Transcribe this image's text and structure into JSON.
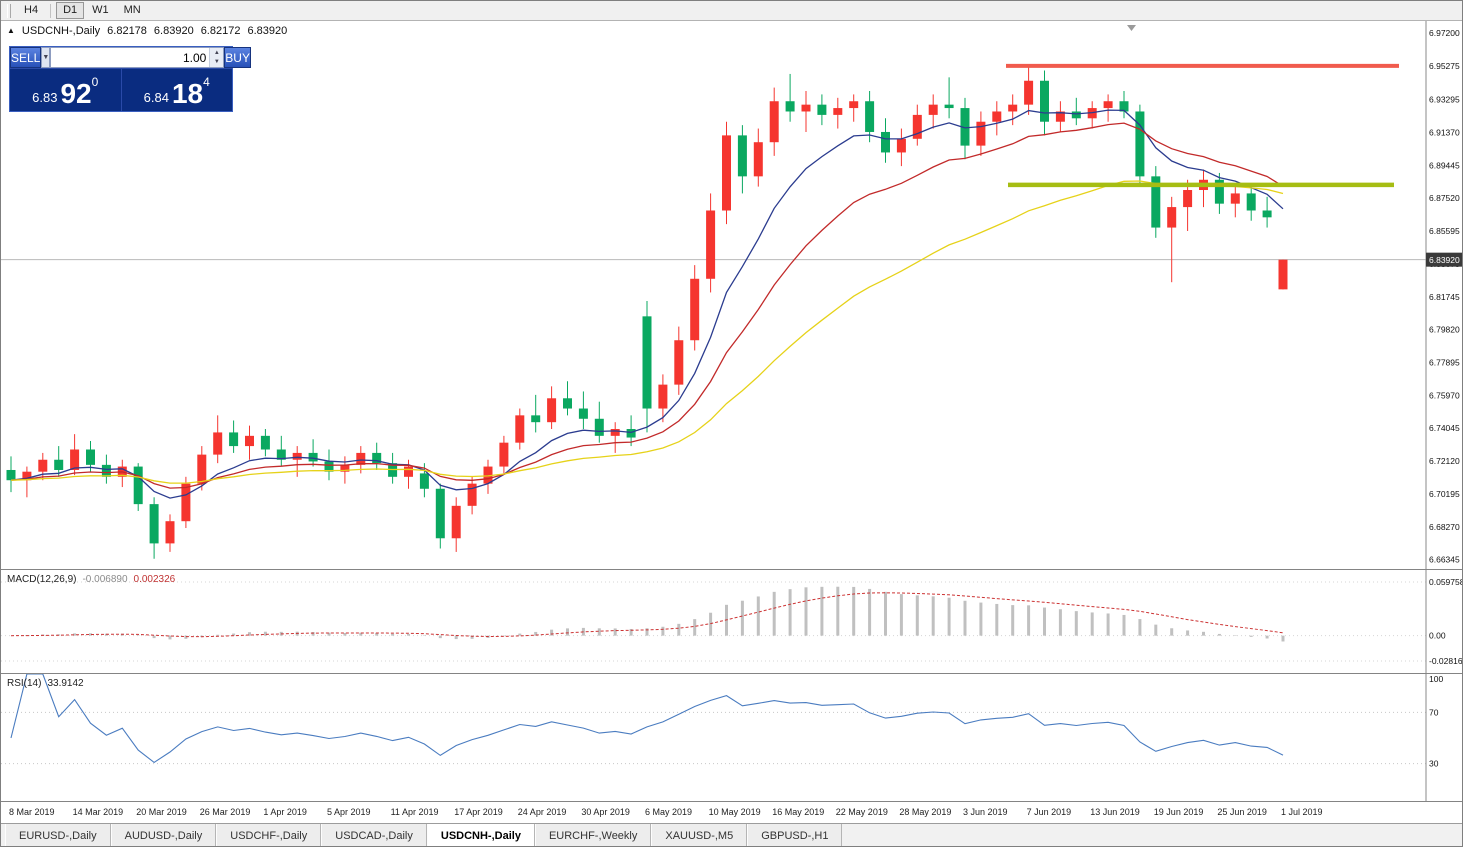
{
  "toolbar": {
    "timeframes": [
      "H4",
      "D1",
      "W1",
      "MN"
    ]
  },
  "icons": {
    "tick_up": "▲",
    "dropdown": "▼",
    "spin_up": "▲",
    "spin_down": "▼"
  },
  "chart_header": {
    "symbol": "USDCNH-,Daily",
    "open": "6.82178",
    "high": "6.83920",
    "low": "6.82172",
    "close": "6.83920"
  },
  "trade_panel": {
    "sell_label": "SELL",
    "buy_label": "BUY",
    "volume": "1.00",
    "sell_price": {
      "prefix": "6.83",
      "big": "92",
      "sup": "0"
    },
    "buy_price": {
      "prefix": "6.84",
      "big": "18",
      "sup": "4"
    }
  },
  "price_axis": [
    "6.97200",
    "6.95275",
    "6.93295",
    "6.91370",
    "6.89445",
    "6.87520",
    "6.85595",
    "6.83670",
    "6.81745",
    "6.79820",
    "6.77895",
    "6.75970",
    "6.74045",
    "6.72120",
    "6.70195",
    "6.68270",
    "6.66345"
  ],
  "current_price_badge": "6.83920",
  "macd_panel": {
    "name": "MACD(12,26,9)",
    "value": "-0.006890",
    "signal_value": "0.002326",
    "axis_labels": [
      "0.059758",
      "0.00",
      "-0.02816"
    ]
  },
  "rsi_panel": {
    "name": "RSI(14)",
    "value": "33.9142",
    "axis_labels": [
      "100",
      "70",
      "30"
    ]
  },
  "date_axis": [
    "8 Mar 2019",
    "14 Mar 2019",
    "20 Mar 2019",
    "26 Mar 2019",
    "1 Apr 2019",
    "5 Apr 2019",
    "11 Apr 2019",
    "17 Apr 2019",
    "24 Apr 2019",
    "30 Apr 2019",
    "6 May 2019",
    "10 May 2019",
    "16 May 2019",
    "22 May 2019",
    "28 May 2019",
    "3 Jun 2019",
    "7 Jun 2019",
    "13 Jun 2019",
    "19 Jun 2019",
    "25 Jun 2019",
    "1 Jul 2019"
  ],
  "tabs": [
    {
      "label": "EURUSD-,Daily",
      "active": false
    },
    {
      "label": "AUDUSD-,Daily",
      "active": false
    },
    {
      "label": "USDCHF-,Daily",
      "active": false
    },
    {
      "label": "USDCAD-,Daily",
      "active": false
    },
    {
      "label": "USDCNH-,Daily",
      "active": true
    },
    {
      "label": "EURCHF-,Weekly",
      "active": false
    },
    {
      "label": "XAUUSD-,M5",
      "active": false
    },
    {
      "label": "GBPUSD-,H1",
      "active": false
    }
  ],
  "colors": {
    "candle_up": "#f5352f",
    "candle_down": "#0aa860",
    "ma_fast": "#2b3c8f",
    "ma_mid": "#c22a2a",
    "ma_slow": "#e6d219",
    "resistance": "#f15b4d",
    "support": "#a6bd13",
    "histogram": "#c0c0c0",
    "signal_red": "#cc3333",
    "rsi_line": "#4a7cc0",
    "badge_bg": "#3a3a3a",
    "panel_blue": "#0a2c80",
    "button_blue": "#2851b8"
  },
  "chart_data": {
    "type": "candlestick",
    "symbol": "USDCNH",
    "timeframe": "Daily",
    "y_range": [
      6.658,
      6.979
    ],
    "candles": [
      [
        6.716,
        6.724,
        6.703,
        6.71
      ],
      [
        6.71,
        6.718,
        6.7,
        6.715
      ],
      [
        6.715,
        6.726,
        6.71,
        6.722
      ],
      [
        6.722,
        6.73,
        6.712,
        6.716
      ],
      [
        6.716,
        6.737,
        6.713,
        6.728
      ],
      [
        6.728,
        6.733,
        6.715,
        6.719
      ],
      [
        6.719,
        6.725,
        6.708,
        6.712
      ],
      [
        6.712,
        6.722,
        6.706,
        6.718
      ],
      [
        6.718,
        6.72,
        6.692,
        6.696
      ],
      [
        6.696,
        6.7,
        6.664,
        6.673
      ],
      [
        6.673,
        6.69,
        6.668,
        6.686
      ],
      [
        6.686,
        6.712,
        6.682,
        6.708
      ],
      [
        6.708,
        6.73,
        6.704,
        6.725
      ],
      [
        6.725,
        6.748,
        6.72,
        6.738
      ],
      [
        6.738,
        6.745,
        6.726,
        6.73
      ],
      [
        6.73,
        6.742,
        6.722,
        6.736
      ],
      [
        6.736,
        6.74,
        6.724,
        6.728
      ],
      [
        6.728,
        6.736,
        6.718,
        6.722
      ],
      [
        6.722,
        6.73,
        6.712,
        6.726
      ],
      [
        6.726,
        6.734,
        6.718,
        6.721
      ],
      [
        6.721,
        6.728,
        6.71,
        6.715
      ],
      [
        6.715,
        6.724,
        6.708,
        6.719
      ],
      [
        6.719,
        6.73,
        6.714,
        6.726
      ],
      [
        6.726,
        6.732,
        6.716,
        6.72
      ],
      [
        6.72,
        6.726,
        6.708,
        6.712
      ],
      [
        6.712,
        6.722,
        6.705,
        6.718
      ],
      [
        6.714,
        6.72,
        6.7,
        6.705
      ],
      [
        6.705,
        6.708,
        6.67,
        6.676
      ],
      [
        6.676,
        6.7,
        6.668,
        6.695
      ],
      [
        6.695,
        6.712,
        6.69,
        6.708
      ],
      [
        6.708,
        6.722,
        6.702,
        6.718
      ],
      [
        6.718,
        6.736,
        6.714,
        6.732
      ],
      [
        6.732,
        6.752,
        6.728,
        6.748
      ],
      [
        6.748,
        6.76,
        6.738,
        6.744
      ],
      [
        6.744,
        6.765,
        6.74,
        6.758
      ],
      [
        6.758,
        6.768,
        6.748,
        6.752
      ],
      [
        6.752,
        6.762,
        6.74,
        6.746
      ],
      [
        6.746,
        6.756,
        6.732,
        6.736
      ],
      [
        6.736,
        6.744,
        6.726,
        6.74
      ],
      [
        6.74,
        6.748,
        6.73,
        6.735
      ],
      [
        6.806,
        6.815,
        6.738,
        6.752
      ],
      [
        6.752,
        6.772,
        6.744,
        6.766
      ],
      [
        6.766,
        6.8,
        6.76,
        6.792
      ],
      [
        6.792,
        6.836,
        6.786,
        6.828
      ],
      [
        6.828,
        6.878,
        6.82,
        6.868
      ],
      [
        6.868,
        6.92,
        6.86,
        6.912
      ],
      [
        6.912,
        6.918,
        6.878,
        6.888
      ],
      [
        6.888,
        6.916,
        6.882,
        6.908
      ],
      [
        6.908,
        6.94,
        6.9,
        6.932
      ],
      [
        6.932,
        6.948,
        6.92,
        6.926
      ],
      [
        6.926,
        6.938,
        6.914,
        6.93
      ],
      [
        6.93,
        6.936,
        6.918,
        6.924
      ],
      [
        6.924,
        6.934,
        6.916,
        6.928
      ],
      [
        6.928,
        6.936,
        6.92,
        6.932
      ],
      [
        6.932,
        6.938,
        6.908,
        6.914
      ],
      [
        6.914,
        6.922,
        6.896,
        6.902
      ],
      [
        6.902,
        6.916,
        6.894,
        6.91
      ],
      [
        6.91,
        6.93,
        6.906,
        6.924
      ],
      [
        6.924,
        6.936,
        6.916,
        6.93
      ],
      [
        6.93,
        6.946,
        6.922,
        6.928
      ],
      [
        6.928,
        6.934,
        6.898,
        6.906
      ],
      [
        6.906,
        6.926,
        6.9,
        6.92
      ],
      [
        6.92,
        6.932,
        6.912,
        6.926
      ],
      [
        6.926,
        6.936,
        6.918,
        6.93
      ],
      [
        6.93,
        6.952,
        6.924,
        6.944
      ],
      [
        6.944,
        6.95,
        6.912,
        6.92
      ],
      [
        6.92,
        6.932,
        6.914,
        6.926
      ],
      [
        6.926,
        6.934,
        6.918,
        6.922
      ],
      [
        6.922,
        6.932,
        6.916,
        6.928
      ],
      [
        6.928,
        6.936,
        6.92,
        6.932
      ],
      [
        6.932,
        6.938,
        6.922,
        6.926
      ],
      [
        6.926,
        6.93,
        6.882,
        6.888
      ],
      [
        6.888,
        6.894,
        6.852,
        6.858
      ],
      [
        6.858,
        6.876,
        6.826,
        6.87
      ],
      [
        6.87,
        6.886,
        6.856,
        6.88
      ],
      [
        6.88,
        6.892,
        6.87,
        6.886
      ],
      [
        6.886,
        6.89,
        6.866,
        6.872
      ],
      [
        6.872,
        6.884,
        6.864,
        6.878
      ],
      [
        6.878,
        6.882,
        6.862,
        6.868
      ],
      [
        6.868,
        6.876,
        6.858,
        6.864
      ],
      [
        6.8218,
        6.8392,
        6.8217,
        6.8392
      ]
    ],
    "moving_averages": [
      {
        "name": "fast",
        "period": 8,
        "color": "#2b3c8f"
      },
      {
        "name": "mid",
        "period": 16,
        "color": "#c22a2a"
      },
      {
        "name": "slow",
        "period": 34,
        "color": "#e6d219"
      }
    ],
    "overlays": {
      "resistance": {
        "price": 6.9527,
        "color": "#f15b4d"
      },
      "support": {
        "price": 6.883,
        "color": "#a6bd13"
      },
      "current_price": 6.8392
    },
    "macd": {
      "fast": 12,
      "slow": 26,
      "signal": 9,
      "range": [
        -0.0427,
        0.0731
      ],
      "current": -0.00689,
      "current_signal": 0.002326
    },
    "rsi": {
      "period": 14,
      "range": [
        0,
        100
      ],
      "levels": [
        70,
        30
      ],
      "current": 33.9142
    }
  }
}
